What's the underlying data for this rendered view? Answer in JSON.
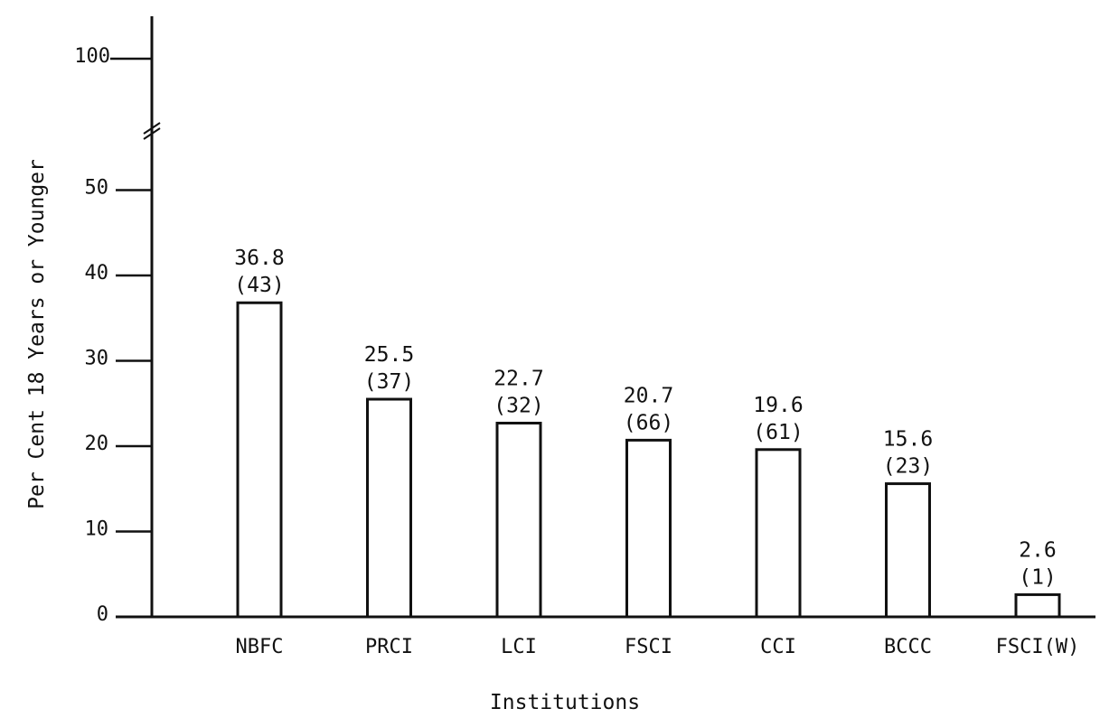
{
  "chart_data": {
    "type": "bar",
    "title": "",
    "xlabel": "Institutions",
    "ylabel": "Per Cent 18 Years or Younger",
    "categories": [
      "NBFC",
      "PRCI",
      "LCI",
      "FSCI",
      "CCI",
      "BCCC",
      "FSCI(W)"
    ],
    "values": [
      36.8,
      25.5,
      22.7,
      20.7,
      19.6,
      15.6,
      2.6
    ],
    "counts": [
      "(43)",
      "(37)",
      "(32)",
      "(66)",
      "(61)",
      "(23)",
      "(1)"
    ],
    "value_labels": [
      "36.8",
      "25.5",
      "22.7",
      "20.7",
      "19.6",
      "15.6",
      "2.6"
    ],
    "y_ticks": [
      0,
      10,
      20,
      30,
      40,
      50
    ],
    "y_tick_labels": [
      "0",
      "10",
      "20",
      "30",
      "40",
      "50"
    ],
    "y_break_tick_label": "100",
    "ylim": [
      0,
      50
    ],
    "axis_break": true,
    "grid": false,
    "legend": "none",
    "colors": {
      "bar_fill": "#ffffff",
      "bar_stroke": "#111111",
      "axis": "#111111"
    }
  }
}
